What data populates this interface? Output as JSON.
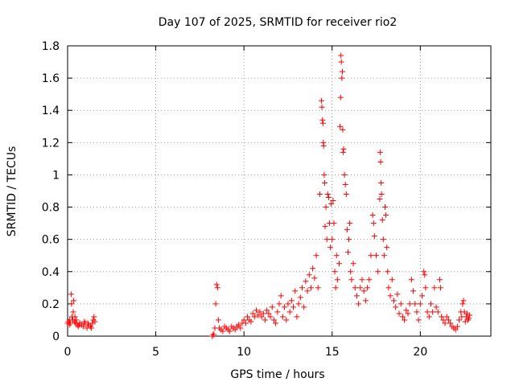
{
  "chart_data": {
    "type": "scatter",
    "title": "Day 107 of 2025, SRMTID for receiver rio2",
    "xlabel": "GPS time / hours",
    "ylabel": "SRMTID / TECUs",
    "xlim": [
      0,
      24
    ],
    "ylim": [
      0,
      1.8
    ],
    "xticks": [
      0,
      5,
      10,
      15,
      20
    ],
    "yticks": [
      0,
      0.2,
      0.4,
      0.6,
      0.8,
      1,
      1.2,
      1.4,
      1.6,
      1.8
    ],
    "ytick_labels": [
      "0",
      "0.2",
      "0.4",
      "0.6",
      "0.8",
      "1",
      "1.2",
      "1.4",
      "1.6",
      "1.8"
    ],
    "grid": true,
    "marker": "+",
    "color": "#ff0000",
    "series": [
      {
        "name": "rio2",
        "points": [
          [
            0.0,
            0.08
          ],
          [
            0.05,
            0.09
          ],
          [
            0.1,
            0.07
          ],
          [
            0.15,
            0.08
          ],
          [
            0.2,
            0.26
          ],
          [
            0.22,
            0.2
          ],
          [
            0.25,
            0.12
          ],
          [
            0.3,
            0.1
          ],
          [
            0.35,
            0.22
          ],
          [
            0.4,
            0.09
          ],
          [
            0.45,
            0.08
          ],
          [
            0.5,
            0.1
          ],
          [
            0.55,
            0.07
          ],
          [
            0.6,
            0.06
          ],
          [
            0.7,
            0.08
          ],
          [
            0.8,
            0.07
          ],
          [
            0.9,
            0.06
          ],
          [
            1.0,
            0.08
          ],
          [
            1.1,
            0.05
          ],
          [
            1.2,
            0.07
          ],
          [
            1.3,
            0.06
          ],
          [
            1.4,
            0.08
          ],
          [
            1.45,
            0.1
          ],
          [
            1.5,
            0.12
          ],
          [
            1.55,
            0.09
          ],
          [
            0.12,
            0.1
          ],
          [
            0.32,
            0.15
          ],
          [
            0.42,
            0.12
          ],
          [
            0.65,
            0.07
          ],
          [
            0.95,
            0.09
          ],
          [
            1.15,
            0.08
          ],
          [
            1.35,
            0.05
          ],
          [
            8.2,
            0.0
          ],
          [
            8.25,
            0.01
          ],
          [
            8.3,
            0.01
          ],
          [
            8.35,
            0.05
          ],
          [
            8.4,
            0.2
          ],
          [
            8.45,
            0.32
          ],
          [
            8.5,
            0.3
          ],
          [
            8.55,
            0.1
          ],
          [
            8.6,
            0.05
          ],
          [
            8.7,
            0.04
          ],
          [
            8.8,
            0.03
          ],
          [
            8.9,
            0.06
          ],
          [
            9.0,
            0.05
          ],
          [
            9.1,
            0.04
          ],
          [
            9.2,
            0.03
          ],
          [
            9.3,
            0.06
          ],
          [
            9.4,
            0.05
          ],
          [
            9.5,
            0.04
          ],
          [
            9.6,
            0.06
          ],
          [
            9.7,
            0.07
          ],
          [
            9.8,
            0.05
          ],
          [
            9.9,
            0.08
          ],
          [
            10.0,
            0.1
          ],
          [
            10.1,
            0.08
          ],
          [
            10.2,
            0.12
          ],
          [
            10.3,
            0.1
          ],
          [
            10.4,
            0.09
          ],
          [
            10.5,
            0.14
          ],
          [
            10.6,
            0.12
          ],
          [
            10.7,
            0.16
          ],
          [
            10.8,
            0.13
          ],
          [
            10.9,
            0.15
          ],
          [
            11.0,
            0.12
          ],
          [
            11.1,
            0.14
          ],
          [
            11.2,
            0.1
          ],
          [
            11.3,
            0.16
          ],
          [
            11.4,
            0.14
          ],
          [
            11.5,
            0.12
          ],
          [
            11.6,
            0.18
          ],
          [
            11.7,
            0.1
          ],
          [
            11.8,
            0.08
          ],
          [
            11.9,
            0.15
          ],
          [
            12.0,
            0.2
          ],
          [
            12.1,
            0.25
          ],
          [
            12.2,
            0.12
          ],
          [
            12.3,
            0.18
          ],
          [
            12.4,
            0.1
          ],
          [
            12.5,
            0.2
          ],
          [
            12.6,
            0.15
          ],
          [
            12.7,
            0.22
          ],
          [
            12.8,
            0.18
          ],
          [
            12.9,
            0.28
          ],
          [
            13.0,
            0.12
          ],
          [
            13.1,
            0.2
          ],
          [
            13.2,
            0.24
          ],
          [
            13.3,
            0.3
          ],
          [
            13.4,
            0.18
          ],
          [
            13.5,
            0.34
          ],
          [
            13.6,
            0.28
          ],
          [
            13.7,
            0.38
          ],
          [
            13.8,
            0.3
          ],
          [
            13.9,
            0.42
          ],
          [
            14.0,
            0.36
          ],
          [
            14.1,
            0.5
          ],
          [
            14.2,
            0.3
          ],
          [
            14.3,
            0.88
          ],
          [
            14.4,
            1.46
          ],
          [
            14.42,
            1.42
          ],
          [
            14.45,
            1.34
          ],
          [
            14.48,
            1.32
          ],
          [
            14.5,
            1.2
          ],
          [
            14.52,
            1.18
          ],
          [
            14.55,
            1.0
          ],
          [
            14.58,
            0.95
          ],
          [
            14.6,
            0.68
          ],
          [
            14.65,
            0.8
          ],
          [
            14.7,
            0.6
          ],
          [
            14.75,
            0.88
          ],
          [
            14.8,
            0.86
          ],
          [
            14.85,
            0.7
          ],
          [
            14.9,
            0.55
          ],
          [
            14.95,
            0.82
          ],
          [
            15.0,
            0.6
          ],
          [
            15.05,
            0.84
          ],
          [
            15.1,
            0.7
          ],
          [
            15.15,
            0.4
          ],
          [
            15.2,
            0.3
          ],
          [
            15.25,
            0.5
          ],
          [
            15.3,
            0.35
          ],
          [
            15.4,
            0.45
          ],
          [
            15.45,
            1.3
          ],
          [
            15.48,
            1.48
          ],
          [
            15.5,
            1.74
          ],
          [
            15.52,
            1.7
          ],
          [
            15.55,
            1.6
          ],
          [
            15.58,
            1.64
          ],
          [
            15.6,
            1.28
          ],
          [
            15.62,
            1.14
          ],
          [
            15.65,
            1.16
          ],
          [
            15.7,
            1.0
          ],
          [
            15.75,
            0.94
          ],
          [
            15.8,
            0.88
          ],
          [
            15.85,
            0.66
          ],
          [
            15.9,
            0.52
          ],
          [
            15.95,
            0.6
          ],
          [
            16.0,
            0.7
          ],
          [
            16.05,
            0.4
          ],
          [
            16.1,
            0.35
          ],
          [
            16.2,
            0.45
          ],
          [
            16.3,
            0.3
          ],
          [
            16.4,
            0.25
          ],
          [
            16.5,
            0.2
          ],
          [
            16.6,
            0.3
          ],
          [
            16.7,
            0.35
          ],
          [
            16.8,
            0.28
          ],
          [
            16.9,
            0.22
          ],
          [
            17.0,
            0.3
          ],
          [
            17.1,
            0.35
          ],
          [
            17.2,
            0.5
          ],
          [
            17.3,
            0.75
          ],
          [
            17.35,
            0.7
          ],
          [
            17.4,
            0.62
          ],
          [
            17.5,
            0.5
          ],
          [
            17.6,
            0.4
          ],
          [
            17.7,
            0.85
          ],
          [
            17.72,
            1.14
          ],
          [
            17.75,
            1.08
          ],
          [
            17.78,
            0.95
          ],
          [
            17.8,
            0.88
          ],
          [
            17.85,
            0.72
          ],
          [
            17.9,
            0.6
          ],
          [
            17.95,
            0.5
          ],
          [
            18.0,
            0.8
          ],
          [
            18.05,
            0.75
          ],
          [
            18.1,
            0.55
          ],
          [
            18.15,
            0.4
          ],
          [
            18.2,
            0.3
          ],
          [
            18.3,
            0.25
          ],
          [
            18.4,
            0.35
          ],
          [
            18.5,
            0.22
          ],
          [
            18.6,
            0.18
          ],
          [
            18.7,
            0.26
          ],
          [
            18.8,
            0.14
          ],
          [
            18.9,
            0.2
          ],
          [
            19.0,
            0.12
          ],
          [
            19.1,
            0.1
          ],
          [
            19.2,
            0.16
          ],
          [
            19.3,
            0.14
          ],
          [
            19.4,
            0.2
          ],
          [
            19.5,
            0.35
          ],
          [
            19.6,
            0.28
          ],
          [
            19.7,
            0.2
          ],
          [
            19.8,
            0.15
          ],
          [
            19.9,
            0.1
          ],
          [
            20.0,
            0.2
          ],
          [
            20.1,
            0.25
          ],
          [
            20.2,
            0.4
          ],
          [
            20.25,
            0.38
          ],
          [
            20.3,
            0.3
          ],
          [
            20.4,
            0.15
          ],
          [
            20.5,
            0.12
          ],
          [
            20.6,
            0.2
          ],
          [
            20.7,
            0.15
          ],
          [
            20.8,
            0.3
          ],
          [
            20.9,
            0.18
          ],
          [
            21.0,
            0.15
          ],
          [
            21.1,
            0.35
          ],
          [
            21.15,
            0.3
          ],
          [
            21.2,
            0.12
          ],
          [
            21.3,
            0.1
          ],
          [
            21.4,
            0.08
          ],
          [
            21.5,
            0.12
          ],
          [
            21.6,
            0.1
          ],
          [
            21.7,
            0.08
          ],
          [
            21.8,
            0.06
          ],
          [
            21.9,
            0.05
          ],
          [
            22.0,
            0.04
          ],
          [
            22.1,
            0.06
          ],
          [
            22.2,
            0.1
          ],
          [
            22.3,
            0.15
          ],
          [
            22.4,
            0.2
          ],
          [
            22.45,
            0.22
          ],
          [
            22.5,
            0.15
          ],
          [
            22.6,
            0.12
          ],
          [
            22.7,
            0.1
          ],
          [
            22.8,
            0.13
          ],
          [
            22.75,
            0.11
          ],
          [
            22.65,
            0.14
          ],
          [
            22.55,
            0.09
          ],
          [
            22.35,
            0.12
          ]
        ]
      }
    ]
  }
}
